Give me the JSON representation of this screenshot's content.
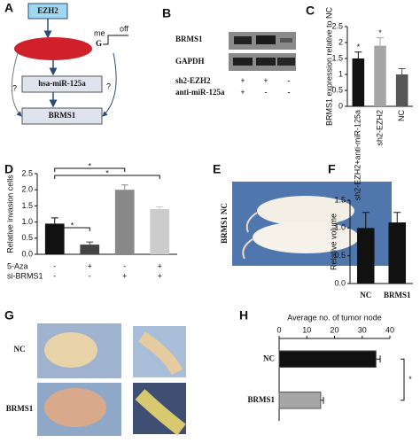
{
  "figure": {
    "panel_labels": [
      "A",
      "B",
      "C",
      "D",
      "E",
      "F",
      "G",
      "H"
    ],
    "diagram": {
      "ezh2": "EZH2",
      "methyl": "me",
      "site": "G",
      "state": "off",
      "mirna": "hsa-miR-125a",
      "target": "BRMS1",
      "unknown": [
        "?",
        "?"
      ]
    },
    "blot": {
      "proteins": [
        "BRMS1",
        "GAPDH"
      ],
      "rows": [
        {
          "name": "sh2-EZH2",
          "marks": [
            "+",
            "+",
            "-"
          ]
        },
        {
          "name": "anti-miR-125a",
          "marks": [
            "+",
            "-",
            "-"
          ]
        }
      ]
    },
    "mouse_photo": {
      "label": "BRMS1  NC"
    },
    "tumor_photo": {
      "labels": [
        "NC",
        "BRMS1"
      ]
    }
  },
  "chart_data": [
    {
      "type": "bar",
      "ylabel": "BRMS1 expression relative to NC",
      "categories": [
        "sh2-EZH2+anti-miR-125a",
        "sh2-EZH2",
        "NC"
      ],
      "values": [
        1.5,
        1.9,
        1.0
      ],
      "errors": [
        0.2,
        0.25,
        0.18
      ],
      "colors": [
        "#111111",
        "#a6a6a6",
        "#555555"
      ],
      "ylim": [
        0,
        2.5
      ],
      "yticks": [
        0,
        0.5,
        1,
        1.5,
        2,
        2.5
      ],
      "annotations": [
        "*",
        "*"
      ]
    },
    {
      "type": "bar",
      "ylabel": "Relative invasion cells",
      "conditions": [
        {
          "name": "5-Aza",
          "marks": [
            "-",
            "+",
            "-",
            "+"
          ]
        },
        {
          "name": "si-BRMS1",
          "marks": [
            "-",
            "-",
            "+",
            "+"
          ]
        }
      ],
      "values": [
        0.95,
        0.3,
        2.0,
        1.4
      ],
      "errors": [
        0.18,
        0.08,
        0.15,
        0.07
      ],
      "colors": [
        "#111111",
        "#444444",
        "#888888",
        "#cccccc"
      ],
      "ylim": [
        0,
        2.5
      ],
      "yticks": [
        {
          "value": 0,
          "label": "0.0"
        },
        0.5,
        {
          "value": 1,
          "label": "1.0"
        },
        1.5,
        {
          "value": 2,
          "label": "2.0"
        },
        2.5
      ],
      "annotations": [
        "*",
        "*",
        "*"
      ]
    },
    {
      "type": "bar",
      "ylabel": "Relative volume",
      "categories": [
        "NC",
        "BRMS1"
      ],
      "values": [
        1.0,
        1.1
      ],
      "errors": [
        0.28,
        0.18
      ],
      "colors": [
        "#111111",
        "#111111"
      ],
      "ylim": [
        0,
        1.5
      ],
      "yticks": [
        {
          "value": 0,
          "label": "0.0"
        },
        0.5,
        {
          "value": 1,
          "label": "1.0"
        },
        1.5
      ]
    },
    {
      "type": "hbar",
      "title": "Average no. of tumor node",
      "categories": [
        "NC",
        "BRMS1"
      ],
      "values": [
        35,
        15
      ],
      "errors": [
        1.5,
        1
      ],
      "colors": [
        "#111111",
        "#a6a6a6"
      ],
      "xlim": [
        0,
        40
      ],
      "xticks": [
        0,
        10,
        20,
        30,
        40
      ],
      "annotations": [
        "*"
      ]
    }
  ]
}
